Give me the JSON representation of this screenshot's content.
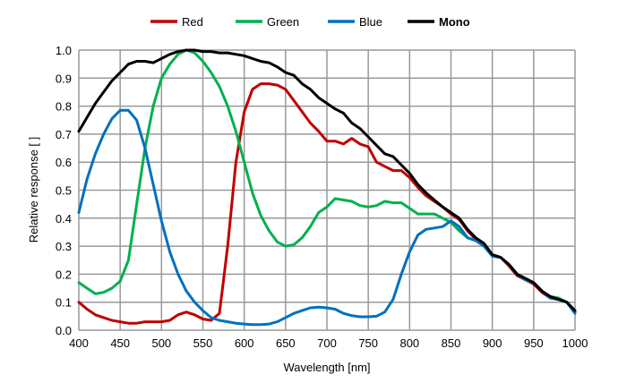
{
  "chart_data": {
    "type": "line",
    "title": "",
    "xlabel": "Wavelength [nm]",
    "ylabel": "Relative response [ ]",
    "xlim": [
      400,
      1000
    ],
    "ylim": [
      0,
      1.0
    ],
    "grid": true,
    "legend_position": "top-center",
    "xticks": [
      "400",
      "450",
      "500",
      "550",
      "600",
      "650",
      "700",
      "750",
      "800",
      "850",
      "900",
      "950",
      "1000"
    ],
    "yticks": [
      "0.0",
      "0.1",
      "0.2",
      "0.3",
      "0.4",
      "0.5",
      "0.6",
      "0.7",
      "0.8",
      "0.9",
      "1.0"
    ],
    "x": [
      400,
      410,
      420,
      430,
      440,
      450,
      460,
      470,
      480,
      490,
      500,
      510,
      520,
      530,
      540,
      550,
      560,
      570,
      580,
      590,
      600,
      610,
      620,
      630,
      640,
      650,
      660,
      670,
      680,
      690,
      700,
      710,
      720,
      730,
      740,
      750,
      760,
      770,
      780,
      790,
      800,
      810,
      820,
      830,
      840,
      850,
      860,
      870,
      880,
      890,
      900,
      910,
      920,
      930,
      940,
      950,
      960,
      970,
      980,
      990,
      1000
    ],
    "series": [
      {
        "name": "Red",
        "color": "#c00000",
        "bold": false,
        "values": [
          0.1,
          0.075,
          0.055,
          0.045,
          0.035,
          0.03,
          0.025,
          0.025,
          0.03,
          0.03,
          0.03,
          0.035,
          0.055,
          0.065,
          0.055,
          0.04,
          0.035,
          0.06,
          0.3,
          0.6,
          0.78,
          0.86,
          0.88,
          0.88,
          0.875,
          0.86,
          0.82,
          0.78,
          0.74,
          0.71,
          0.675,
          0.675,
          0.665,
          0.685,
          0.665,
          0.655,
          0.6,
          0.585,
          0.57,
          0.57,
          0.545,
          0.51,
          0.48,
          0.46,
          0.44,
          0.415,
          0.395,
          0.355,
          0.325,
          0.305,
          0.265,
          0.26,
          0.23,
          0.195,
          0.18,
          0.165,
          0.135,
          0.115,
          0.11,
          0.1,
          0.065
        ]
      },
      {
        "name": "Green",
        "color": "#00b050",
        "bold": false,
        "values": [
          0.17,
          0.15,
          0.13,
          0.135,
          0.15,
          0.175,
          0.25,
          0.45,
          0.65,
          0.8,
          0.9,
          0.95,
          0.985,
          1.0,
          0.99,
          0.96,
          0.92,
          0.87,
          0.8,
          0.71,
          0.6,
          0.49,
          0.41,
          0.355,
          0.315,
          0.3,
          0.305,
          0.33,
          0.37,
          0.42,
          0.44,
          0.47,
          0.465,
          0.46,
          0.445,
          0.44,
          0.445,
          0.46,
          0.455,
          0.455,
          0.435,
          0.415,
          0.415,
          0.415,
          0.4,
          0.385,
          0.355,
          0.33,
          0.32,
          0.3,
          0.265,
          0.26,
          0.235,
          0.2,
          0.18,
          0.17,
          0.14,
          0.12,
          0.115,
          0.1,
          0.065
        ]
      },
      {
        "name": "Blue",
        "color": "#0070c0",
        "bold": false,
        "values": [
          0.42,
          0.54,
          0.63,
          0.7,
          0.755,
          0.785,
          0.785,
          0.75,
          0.65,
          0.52,
          0.39,
          0.28,
          0.2,
          0.14,
          0.1,
          0.07,
          0.045,
          0.035,
          0.03,
          0.025,
          0.022,
          0.02,
          0.02,
          0.022,
          0.03,
          0.045,
          0.06,
          0.07,
          0.08,
          0.082,
          0.08,
          0.075,
          0.06,
          0.052,
          0.048,
          0.048,
          0.05,
          0.065,
          0.11,
          0.2,
          0.28,
          0.34,
          0.36,
          0.365,
          0.37,
          0.39,
          0.37,
          0.33,
          0.32,
          0.3,
          0.265,
          0.26,
          0.235,
          0.2,
          0.18,
          0.17,
          0.14,
          0.115,
          0.11,
          0.1,
          0.06
        ]
      },
      {
        "name": "Mono",
        "color": "#000000",
        "bold": true,
        "values": [
          0.71,
          0.76,
          0.81,
          0.85,
          0.89,
          0.92,
          0.95,
          0.96,
          0.96,
          0.955,
          0.97,
          0.985,
          0.995,
          1.0,
          1.0,
          0.995,
          0.995,
          0.99,
          0.99,
          0.985,
          0.98,
          0.97,
          0.96,
          0.955,
          0.94,
          0.92,
          0.91,
          0.88,
          0.86,
          0.83,
          0.81,
          0.79,
          0.775,
          0.74,
          0.72,
          0.69,
          0.66,
          0.63,
          0.62,
          0.59,
          0.56,
          0.52,
          0.49,
          0.465,
          0.44,
          0.42,
          0.4,
          0.36,
          0.33,
          0.31,
          0.27,
          0.26,
          0.235,
          0.2,
          0.185,
          0.17,
          0.14,
          0.12,
          0.11,
          0.1,
          0.07
        ]
      }
    ]
  }
}
